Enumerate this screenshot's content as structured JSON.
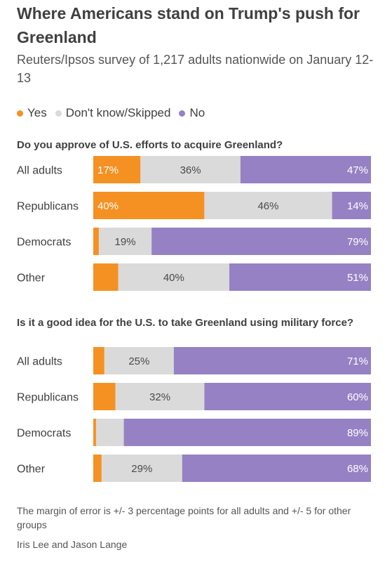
{
  "title": "Where Americans stand on Trump's push for Greenland",
  "subtitle": "Reuters/Ipsos survey of 1,217 adults nationwide on January 12-13",
  "legend": [
    {
      "label": "Yes",
      "color": "#f59123"
    },
    {
      "label": "Don't know/Skipped",
      "color": "#dadada"
    },
    {
      "label": "No",
      "color": "#9581c4"
    }
  ],
  "chart_data": [
    {
      "type": "bar",
      "orientation": "horizontal",
      "stacked": true,
      "title": "Do you approve of U.S. efforts to acquire Greenland?",
      "categories": [
        "All adults",
        "Republicans",
        "Democrats",
        "Other"
      ],
      "series": [
        {
          "name": "Yes",
          "values": [
            17,
            40,
            2,
            9
          ],
          "labels": [
            "17%",
            "40%",
            "",
            ""
          ]
        },
        {
          "name": "Don't know/Skipped",
          "values": [
            36,
            46,
            19,
            40
          ],
          "labels": [
            "36%",
            "46%",
            "19%",
            "40%"
          ]
        },
        {
          "name": "No",
          "values": [
            47,
            14,
            79,
            51
          ],
          "labels": [
            "47%",
            "14%",
            "79%",
            "51%"
          ]
        }
      ],
      "xlim": [
        0,
        100
      ]
    },
    {
      "type": "bar",
      "orientation": "horizontal",
      "stacked": true,
      "title": "Is it a good idea for the U.S. to take Greenland using military force?",
      "categories": [
        "All adults",
        "Republicans",
        "Democrats",
        "Other"
      ],
      "series": [
        {
          "name": "Yes",
          "values": [
            4,
            8,
            1,
            3
          ],
          "labels": [
            "",
            "",
            "",
            ""
          ]
        },
        {
          "name": "Don't know/Skipped",
          "values": [
            25,
            32,
            10,
            29
          ],
          "labels": [
            "25%",
            "32%",
            "",
            "29%"
          ]
        },
        {
          "name": "No",
          "values": [
            71,
            60,
            89,
            68
          ],
          "labels": [
            "71%",
            "60%",
            "89%",
            "68%"
          ]
        }
      ],
      "xlim": [
        0,
        100
      ]
    }
  ],
  "note": "The margin of error is +/- 3 percentage points for all adults and +/- 5 for other groups",
  "credit": "Iris Lee and Jason Lange"
}
